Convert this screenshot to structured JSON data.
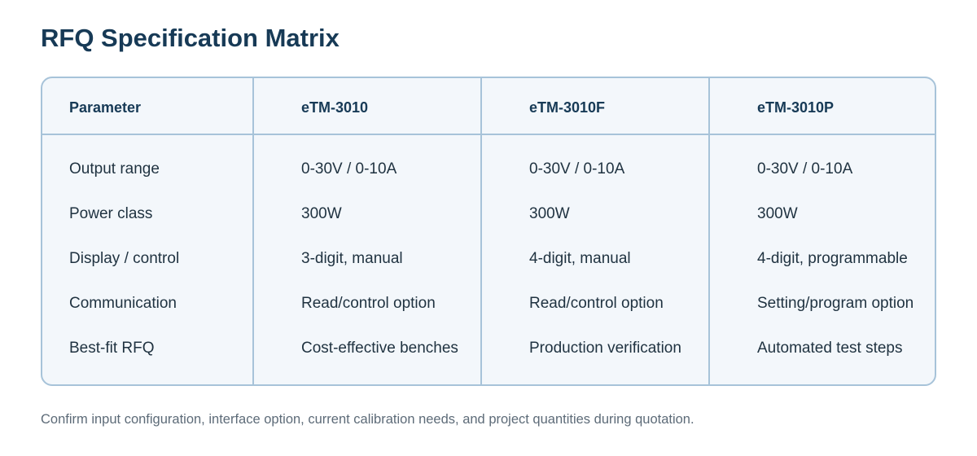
{
  "title": "RFQ Specification Matrix",
  "table": {
    "columns": [
      "Parameter",
      "eTM-3010",
      "eTM-3010F",
      "eTM-3010P"
    ],
    "rows": [
      [
        "Output range",
        "0-30V / 0-10A",
        "0-30V / 0-10A",
        "0-30V / 0-10A"
      ],
      [
        "Power class",
        "300W",
        "300W",
        "300W"
      ],
      [
        "Display / control",
        "3-digit, manual",
        "4-digit, manual",
        "4-digit, programmable"
      ],
      [
        "Communication",
        "Read/control option",
        "Read/control option",
        "Setting/program option"
      ],
      [
        "Best-fit RFQ",
        "Cost-effective benches",
        "Production verification",
        "Automated test steps"
      ]
    ]
  },
  "footnote": "Confirm input configuration, interface option, current calibration needs, and project quantities during quotation.",
  "colors": {
    "title": "#173a56",
    "table_border": "#a7c3d9",
    "table_background": "#f3f7fb",
    "body_text": "#1f3240",
    "footnote_text": "#5d6b78"
  }
}
